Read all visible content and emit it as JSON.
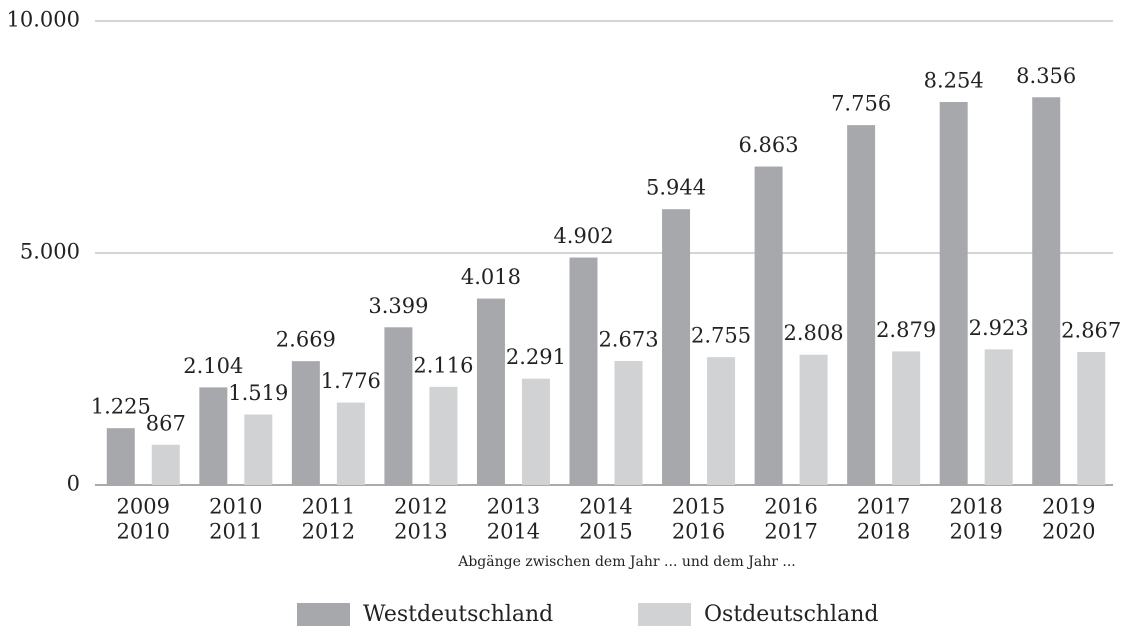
{
  "chart_data": {
    "type": "bar",
    "categories": [
      [
        "2009",
        "2010"
      ],
      [
        "2010",
        "2011"
      ],
      [
        "2011",
        "2012"
      ],
      [
        "2012",
        "2013"
      ],
      [
        "2013",
        "2014"
      ],
      [
        "2014",
        "2015"
      ],
      [
        "2015",
        "2016"
      ],
      [
        "2016",
        "2017"
      ],
      [
        "2017",
        "2018"
      ],
      [
        "2018",
        "2019"
      ],
      [
        "2019",
        "2020"
      ]
    ],
    "x_label": "Abgänge zwischen dem Jahr ... und dem Jahr ...",
    "series": [
      {
        "name": "Westdeutschland",
        "color": "#a7a8ab",
        "values": [
          1225,
          2104,
          2669,
          3399,
          4018,
          4902,
          5944,
          6863,
          7756,
          8254,
          8356
        ],
        "value_labels": [
          "1.225",
          "2.104",
          "2.669",
          "3.399",
          "4.018",
          "4.902",
          "5.944",
          "6.863",
          "7.756",
          "8.254",
          "8.356"
        ]
      },
      {
        "name": "Ostdeutschland",
        "color": "#d1d2d4",
        "values": [
          867,
          1519,
          1776,
          2116,
          2291,
          2673,
          2755,
          2808,
          2879,
          2923,
          2867
        ],
        "value_labels": [
          "867",
          "1.519",
          "1.776",
          "2.116",
          "2.291",
          "2.673",
          "2.755",
          "2.808",
          "2.879",
          "2.923",
          "2.867"
        ]
      }
    ],
    "ylim": [
      0,
      10000
    ],
    "yticks": [
      0,
      {
        "value": 5000,
        "label": "5.000"
      },
      {
        "value": 10000,
        "label": "10.000"
      }
    ],
    "grid": true,
    "legend": "bottom"
  }
}
